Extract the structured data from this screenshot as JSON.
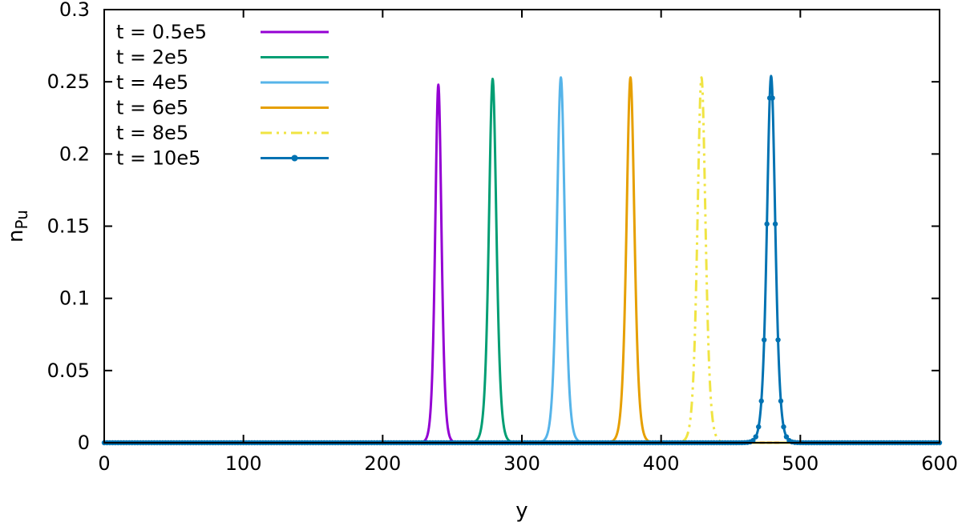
{
  "chart_data": {
    "type": "line",
    "xlabel": "y",
    "ylabel": "n",
    "ylabel_sub": "Pu",
    "xlim": [
      0,
      600
    ],
    "ylim": [
      0,
      0.3
    ],
    "xticks": [
      "0",
      "100",
      "200",
      "300",
      "400",
      "500",
      "600"
    ],
    "yticks": [
      "0",
      "0.05",
      "0.1",
      "0.15",
      "0.2",
      "0.25",
      "0.3"
    ],
    "grid": false,
    "legend_position": "top-left",
    "series": [
      {
        "name": "t = 0.5e5",
        "color": "#9400d3",
        "style": "solid",
        "markers": false,
        "center": 240,
        "peak": 0.248,
        "width": 3.0
      },
      {
        "name": "t = 2e5",
        "color": "#009e73",
        "style": "solid",
        "markers": false,
        "center": 279,
        "peak": 0.252,
        "width": 3.6
      },
      {
        "name": "t = 4e5",
        "color": "#56b4e9",
        "style": "solid",
        "markers": false,
        "center": 328,
        "peak": 0.253,
        "width": 3.8
      },
      {
        "name": "t = 6e5",
        "color": "#e69f00",
        "style": "solid",
        "markers": false,
        "center": 378,
        "peak": 0.253,
        "width": 3.8
      },
      {
        "name": "t = 8e5",
        "color": "#f0e442",
        "style": "dashdot",
        "markers": false,
        "center": 429,
        "peak": 0.253,
        "width": 3.9
      },
      {
        "name": "t = 10e5",
        "color": "#0072b2",
        "style": "solid",
        "markers": true,
        "center": 479,
        "peak": 0.254,
        "width": 4.0
      }
    ]
  }
}
